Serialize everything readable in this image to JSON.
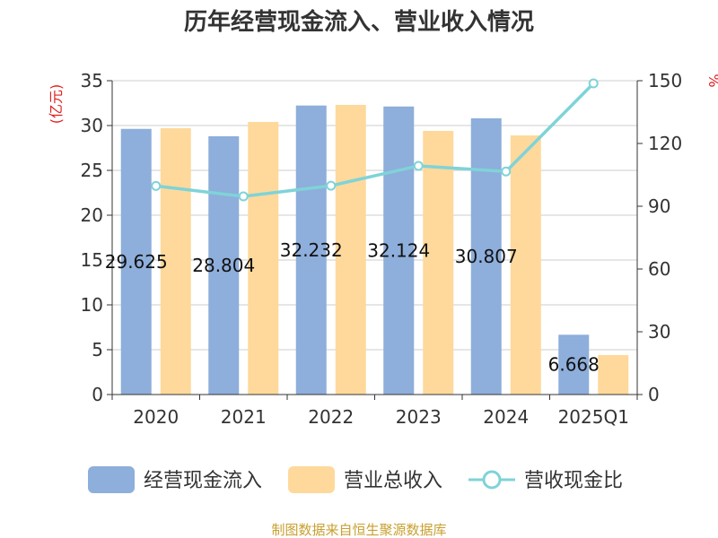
{
  "chart_data": {
    "type": "bar",
    "title": "历年经营现金流入、营业收入情况",
    "categories": [
      "2020",
      "2021",
      "2022",
      "2023",
      "2024",
      "2025Q1"
    ],
    "series": [
      {
        "name": "经营现金流入",
        "kind": "bar",
        "axis": "left",
        "color": "#8eaedb",
        "values": [
          29.625,
          28.804,
          32.232,
          32.124,
          30.807,
          6.668
        ],
        "labels": [
          "29.625",
          "28.804",
          "32.232",
          "32.124",
          "30.807",
          "6.668"
        ]
      },
      {
        "name": "营业总收入",
        "kind": "bar",
        "axis": "left",
        "color": "#fed99b",
        "values": [
          29.7,
          30.4,
          32.3,
          29.4,
          28.9,
          4.4
        ]
      },
      {
        "name": "营收现金比",
        "kind": "line",
        "axis": "right",
        "color": "#7fd3d8",
        "values": [
          99.7,
          94.7,
          99.8,
          109.3,
          106.6,
          148.7
        ]
      }
    ],
    "y_left": {
      "label": "(亿元)",
      "min": 0,
      "max": 35,
      "ticks": [
        0,
        5,
        10,
        15,
        20,
        25,
        30,
        35
      ]
    },
    "y_right": {
      "label": "%",
      "min": 0,
      "max": 150,
      "ticks": [
        0,
        30,
        60,
        90,
        120,
        150
      ]
    },
    "grid": true,
    "legend_position": "bottom"
  },
  "footer": {
    "source": "制图数据来自恒生聚源数据库"
  }
}
